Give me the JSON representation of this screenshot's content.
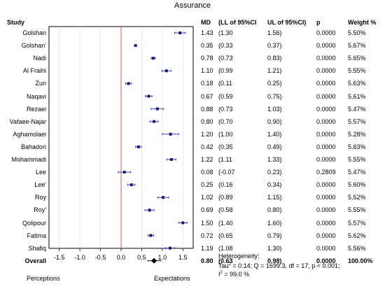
{
  "chart_data": {
    "type": "forest",
    "title": "Assurance",
    "columns": [
      "Study",
      "MD",
      "(LL of 95%CI",
      "UL of 95%CI)",
      "p",
      "Weight %"
    ],
    "xlim": [
      -1.75,
      1.75
    ],
    "xticks": [
      "-1.5",
      "-1.0",
      "-0.5",
      "0.0",
      "0.5",
      "1.0",
      "1.5"
    ],
    "tick_values": [
      -1.5,
      -1.0,
      -0.5,
      0.0,
      0.5,
      1.0,
      1.5
    ],
    "left_label": "Perceptions",
    "right_label": "Expectations",
    "studies": [
      {
        "name": "Golshan",
        "md": 1.43,
        "ll": 1.3,
        "ul": 1.56,
        "md_text": "1.43",
        "ll_text": "(1.30",
        "ul_text": "1.56)",
        "p": "0.0000",
        "weight": "5.50%"
      },
      {
        "name": "Golshan'",
        "md": 0.35,
        "ll": 0.33,
        "ul": 0.37,
        "md_text": "0.35",
        "ll_text": "(0.33",
        "ul_text": "0.37)",
        "p": "0.0000",
        "weight": "5.67%"
      },
      {
        "name": "Nadi",
        "md": 0.78,
        "ll": 0.73,
        "ul": 0.83,
        "md_text": "0.78",
        "ll_text": "(0.73",
        "ul_text": "0.83)",
        "p": "0.0000",
        "weight": "5.65%"
      },
      {
        "name": "Al Fraihi",
        "md": 1.1,
        "ll": 0.99,
        "ul": 1.21,
        "md_text": "1.10",
        "ll_text": "(0.99",
        "ul_text": "1.21)",
        "p": "0.0000",
        "weight": "5.55%"
      },
      {
        "name": "Zun",
        "md": 0.18,
        "ll": 0.11,
        "ul": 0.25,
        "md_text": "0.18",
        "ll_text": "(0.11",
        "ul_text": "0.25)",
        "p": "0.0000",
        "weight": "5.63%"
      },
      {
        "name": "Naqavi",
        "md": 0.67,
        "ll": 0.59,
        "ul": 0.75,
        "md_text": "0.67",
        "ll_text": "(0.59",
        "ul_text": "0.75)",
        "p": "0.0000",
        "weight": "5.61%"
      },
      {
        "name": "Rezaei",
        "md": 0.88,
        "ll": 0.73,
        "ul": 1.03,
        "md_text": "0.88",
        "ll_text": "(0.73",
        "ul_text": "1.03)",
        "p": "0.0000",
        "weight": "5.47%"
      },
      {
        "name": "Vafaee-Najar",
        "md": 0.8,
        "ll": 0.7,
        "ul": 0.9,
        "md_text": "0.80",
        "ll_text": "(0.70",
        "ul_text": "0.90)",
        "p": "0.0000",
        "weight": "5.57%"
      },
      {
        "name": "Aghamolaei",
        "md": 1.2,
        "ll": 1.0,
        "ul": 1.4,
        "md_text": "1.20",
        "ll_text": "(1.00",
        "ul_text": "1.40)",
        "p": "0.0000",
        "weight": "5.28%"
      },
      {
        "name": "Bahadori",
        "md": 0.42,
        "ll": 0.35,
        "ul": 0.49,
        "md_text": "0.42",
        "ll_text": "(0.35",
        "ul_text": "0.49)",
        "p": "0.0000",
        "weight": "5.63%"
      },
      {
        "name": "Mohammadi",
        "md": 1.22,
        "ll": 1.11,
        "ul": 1.33,
        "md_text": "1.22",
        "ll_text": "(1.11",
        "ul_text": "1.33)",
        "p": "0.0000",
        "weight": "5.55%"
      },
      {
        "name": "Lee",
        "md": 0.08,
        "ll": -0.07,
        "ul": 0.23,
        "md_text": "0.08",
        "ll_text": "(-0.07",
        "ul_text": "0.23)",
        "p": "0.2809",
        "weight": "5.47%"
      },
      {
        "name": "Lee'",
        "md": 0.25,
        "ll": 0.16,
        "ul": 0.34,
        "md_text": "0.25",
        "ll_text": "(0.16",
        "ul_text": "0.34)",
        "p": "0.0000",
        "weight": "5.60%"
      },
      {
        "name": "Roy",
        "md": 1.02,
        "ll": 0.89,
        "ul": 1.15,
        "md_text": "1.02",
        "ll_text": "(0.89",
        "ul_text": "1.15)",
        "p": "0.0000",
        "weight": "5.52%"
      },
      {
        "name": "Roy'",
        "md": 0.69,
        "ll": 0.58,
        "ul": 0.8,
        "md_text": "0.69",
        "ll_text": "(0.58",
        "ul_text": "0.80)",
        "p": "0.0000",
        "weight": "5.55%"
      },
      {
        "name": "Qolipour",
        "md": 1.5,
        "ll": 1.4,
        "ul": 1.6,
        "md_text": "1.50",
        "ll_text": "(1.40",
        "ul_text": "1.60)",
        "p": "0.0000",
        "weight": "5.57%"
      },
      {
        "name": "Fatima",
        "md": 0.72,
        "ll": 0.65,
        "ul": 0.79,
        "md_text": "0.72",
        "ll_text": "(0.65",
        "ul_text": "0.79)",
        "p": "0.0000",
        "weight": "5.62%"
      },
      {
        "name": "Shafiq",
        "md": 1.19,
        "ll": 1.08,
        "ul": 1.3,
        "md_text": "1.19",
        "ll_text": "(1.08",
        "ul_text": "1.30)",
        "p": "0.0000",
        "weight": "5.56%"
      }
    ],
    "overall": {
      "name": "Overall",
      "md": 0.8,
      "ll": 0.63,
      "ul": 0.98,
      "md_text": "0.80",
      "ll_text": "(0.63",
      "ul_text": "0.98)",
      "p": "0.0000",
      "weight": "100.00%"
    },
    "heterogeneity": {
      "label": "Heterogeneity:",
      "tau2": "0.14",
      "q_text": "Q = 1699.3, df = 17, p < 0.001;",
      "i2": "99.0 %"
    },
    "colors": {
      "ci_line": "#3344cc",
      "point": "#1a1a66",
      "null_line": "#e05050",
      "grid": "#dddddd",
      "overall": "#000000"
    }
  }
}
